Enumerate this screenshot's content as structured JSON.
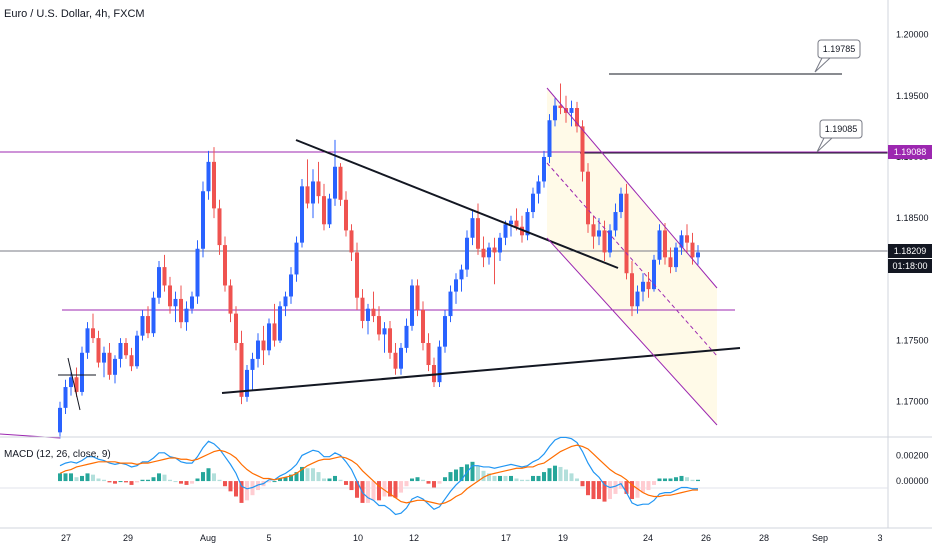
{
  "header": {
    "title": "Euro / U.S. Dollar, 4h, FXCM"
  },
  "macd": {
    "title": "MACD (12, 26, close, 9)"
  },
  "price_axis": [
    "1.20000",
    "1.19500",
    "1.19000",
    "1.18500",
    "1.17500",
    "1.17000"
  ],
  "macd_axis": [
    "0.00200",
    "0.00000"
  ],
  "x_axis": [
    "27",
    "29",
    "Aug",
    "5",
    "10",
    "12",
    "17",
    "19",
    "24",
    "26",
    "28",
    "Sep",
    "3"
  ],
  "tags": {
    "current_price": "1.18209",
    "countdown": "01:18:00",
    "level": "1.19088",
    "callout_upper": "1.19785",
    "callout_lower": "1.19085"
  },
  "colors": {
    "up": "#2962ff",
    "down": "#ef5350",
    "level": "#9c27b0",
    "channel": "#9c27b0",
    "channel_fill": "#fff9e6",
    "macd_line": "#2196f3",
    "signal_line": "#ff6d00",
    "hist_pos_strong": "#26a69a",
    "hist_pos_weak": "#b2dfdb",
    "hist_neg_strong": "#ef5350",
    "hist_neg_weak": "#ffcdd2"
  },
  "chart_data": {
    "type": "candlestick",
    "symbol": "EURUSD",
    "timeframe": "4h",
    "ylim": [
      1.1672,
      1.2025
    ],
    "ohlc": [
      [
        1.1675,
        1.17,
        1.167,
        1.1695
      ],
      [
        1.1695,
        1.1718,
        1.169,
        1.1712
      ],
      [
        1.1712,
        1.1726,
        1.1705,
        1.172
      ],
      [
        1.172,
        1.1728,
        1.1704,
        1.1708
      ],
      [
        1.1708,
        1.1745,
        1.1705,
        1.174
      ],
      [
        1.174,
        1.1765,
        1.1735,
        1.176
      ],
      [
        1.176,
        1.1772,
        1.1748,
        1.1752
      ],
      [
        1.1752,
        1.1758,
        1.1728,
        1.1732
      ],
      [
        1.1732,
        1.1745,
        1.172,
        1.174
      ],
      [
        1.174,
        1.1748,
        1.1718,
        1.1722
      ],
      [
        1.1722,
        1.1738,
        1.1715,
        1.1735
      ],
      [
        1.1735,
        1.1752,
        1.1728,
        1.1748
      ],
      [
        1.1748,
        1.1752,
        1.1735,
        1.1738
      ],
      [
        1.1738,
        1.1744,
        1.1725,
        1.1729
      ],
      [
        1.1729,
        1.1758,
        1.1727,
        1.1754
      ],
      [
        1.1754,
        1.1775,
        1.175,
        1.177
      ],
      [
        1.177,
        1.1778,
        1.1752,
        1.1756
      ],
      [
        1.1756,
        1.179,
        1.1753,
        1.1785
      ],
      [
        1.1785,
        1.1815,
        1.178,
        1.181
      ],
      [
        1.181,
        1.182,
        1.179,
        1.1795
      ],
      [
        1.1795,
        1.1802,
        1.1772,
        1.1778
      ],
      [
        1.1778,
        1.179,
        1.1765,
        1.1784
      ],
      [
        1.1784,
        1.1795,
        1.176,
        1.1765
      ],
      [
        1.1765,
        1.1782,
        1.1758,
        1.1776
      ],
      [
        1.1776,
        1.179,
        1.1772,
        1.1786
      ],
      [
        1.1786,
        1.1832,
        1.178,
        1.1825
      ],
      [
        1.1825,
        1.188,
        1.1818,
        1.1872
      ],
      [
        1.1872,
        1.1905,
        1.1865,
        1.1896
      ],
      [
        1.1896,
        1.1908,
        1.185,
        1.1858
      ],
      [
        1.1858,
        1.1865,
        1.182,
        1.1828
      ],
      [
        1.1828,
        1.1835,
        1.179,
        1.1795
      ],
      [
        1.1795,
        1.18,
        1.1765,
        1.1772
      ],
      [
        1.1772,
        1.1778,
        1.1742,
        1.1748
      ],
      [
        1.1748,
        1.1758,
        1.1698,
        1.1704
      ],
      [
        1.1704,
        1.173,
        1.17,
        1.1726
      ],
      [
        1.1726,
        1.174,
        1.171,
        1.1735
      ],
      [
        1.1735,
        1.1756,
        1.1728,
        1.175
      ],
      [
        1.175,
        1.1762,
        1.173,
        1.1742
      ],
      [
        1.1742,
        1.1768,
        1.1738,
        1.1764
      ],
      [
        1.1764,
        1.178,
        1.1745,
        1.175
      ],
      [
        1.175,
        1.1782,
        1.1748,
        1.1778
      ],
      [
        1.1778,
        1.179,
        1.177,
        1.1786
      ],
      [
        1.1786,
        1.181,
        1.178,
        1.1804
      ],
      [
        1.1804,
        1.1835,
        1.1798,
        1.183
      ],
      [
        1.183,
        1.1882,
        1.1826,
        1.1876
      ],
      [
        1.1876,
        1.1898,
        1.1858,
        1.1862
      ],
      [
        1.1862,
        1.189,
        1.185,
        1.188
      ],
      [
        1.188,
        1.1896,
        1.1862,
        1.1868
      ],
      [
        1.1868,
        1.1878,
        1.184,
        1.1845
      ],
      [
        1.1845,
        1.187,
        1.1842,
        1.1866
      ],
      [
        1.1866,
        1.1914,
        1.186,
        1.1892
      ],
      [
        1.1892,
        1.1895,
        1.186,
        1.1865
      ],
      [
        1.1865,
        1.1872,
        1.1835,
        1.184
      ],
      [
        1.184,
        1.1845,
        1.1815,
        1.1822
      ],
      [
        1.1822,
        1.183,
        1.1775,
        1.1785
      ],
      [
        1.1785,
        1.1792,
        1.176,
        1.1766
      ],
      [
        1.1766,
        1.178,
        1.1755,
        1.1776
      ],
      [
        1.1776,
        1.179,
        1.1765,
        1.177
      ],
      [
        1.177,
        1.1778,
        1.175,
        1.1755
      ],
      [
        1.1755,
        1.1765,
        1.174,
        1.176
      ],
      [
        1.176,
        1.1766,
        1.1735,
        1.174
      ],
      [
        1.174,
        1.1748,
        1.1722,
        1.1727
      ],
      [
        1.1727,
        1.1748,
        1.1722,
        1.1744
      ],
      [
        1.1744,
        1.1768,
        1.174,
        1.1762
      ],
      [
        1.1762,
        1.18,
        1.1758,
        1.1795
      ],
      [
        1.1795,
        1.18,
        1.177,
        1.1775
      ],
      [
        1.1775,
        1.1782,
        1.1742,
        1.1748
      ],
      [
        1.1748,
        1.1756,
        1.1725,
        1.173
      ],
      [
        1.173,
        1.1736,
        1.1712,
        1.1716
      ],
      [
        1.1716,
        1.175,
        1.1712,
        1.1745
      ],
      [
        1.1745,
        1.1775,
        1.174,
        1.177
      ],
      [
        1.177,
        1.1795,
        1.1765,
        1.179
      ],
      [
        1.179,
        1.1805,
        1.178,
        1.18
      ],
      [
        1.18,
        1.1812,
        1.179,
        1.1808
      ],
      [
        1.1808,
        1.184,
        1.1802,
        1.1834
      ],
      [
        1.1834,
        1.1856,
        1.1828,
        1.185
      ],
      [
        1.185,
        1.1862,
        1.182,
        1.1825
      ],
      [
        1.1825,
        1.1835,
        1.181,
        1.1818
      ],
      [
        1.1818,
        1.183,
        1.1812,
        1.1826
      ],
      [
        1.1826,
        1.1834,
        1.1796,
        1.1822
      ],
      [
        1.1822,
        1.1838,
        1.1815,
        1.1834
      ],
      [
        1.1834,
        1.1848,
        1.1828,
        1.1845
      ],
      [
        1.1845,
        1.1852,
        1.1835,
        1.1848
      ],
      [
        1.1848,
        1.1858,
        1.184,
        1.1843
      ],
      [
        1.1843,
        1.1852,
        1.183,
        1.1836
      ],
      [
        1.1836,
        1.1858,
        1.1832,
        1.1855
      ],
      [
        1.1855,
        1.1875,
        1.185,
        1.187
      ],
      [
        1.187,
        1.1885,
        1.1862,
        1.188
      ],
      [
        1.188,
        1.1905,
        1.1875,
        1.19
      ],
      [
        1.19,
        1.1935,
        1.1895,
        1.193
      ],
      [
        1.193,
        1.1948,
        1.1925,
        1.1942
      ],
      [
        1.1942,
        1.196,
        1.1935,
        1.194
      ],
      [
        1.194,
        1.195,
        1.1928,
        1.1936
      ],
      [
        1.1936,
        1.1946,
        1.1925,
        1.194
      ],
      [
        1.194,
        1.1945,
        1.192,
        1.1925
      ],
      [
        1.1925,
        1.193,
        1.188,
        1.1888
      ],
      [
        1.1888,
        1.1895,
        1.1838,
        1.1845
      ],
      [
        1.1845,
        1.1852,
        1.1825,
        1.1835
      ],
      [
        1.1835,
        1.185,
        1.1828,
        1.184
      ],
      [
        1.184,
        1.1848,
        1.1815,
        1.1822
      ],
      [
        1.1822,
        1.1845,
        1.1818,
        1.184
      ],
      [
        1.184,
        1.1862,
        1.1835,
        1.1855
      ],
      [
        1.1855,
        1.1875,
        1.185,
        1.187
      ],
      [
        1.187,
        1.1878,
        1.18,
        1.1805
      ],
      [
        1.1805,
        1.1815,
        1.177,
        1.1778
      ],
      [
        1.1778,
        1.1795,
        1.1772,
        1.179
      ],
      [
        1.179,
        1.1805,
        1.1782,
        1.1798
      ],
      [
        1.1798,
        1.1806,
        1.1785,
        1.1792
      ],
      [
        1.1792,
        1.182,
        1.179,
        1.1816
      ],
      [
        1.1816,
        1.1845,
        1.1812,
        1.184
      ],
      [
        1.184,
        1.1846,
        1.1812,
        1.1818
      ],
      [
        1.1818,
        1.1826,
        1.1805,
        1.181
      ],
      [
        1.181,
        1.183,
        1.1806,
        1.1826
      ],
      [
        1.1826,
        1.184,
        1.182,
        1.1836
      ],
      [
        1.1836,
        1.1845,
        1.1822,
        1.183
      ],
      [
        1.183,
        1.1838,
        1.1812,
        1.1818
      ],
      [
        1.1818,
        1.1828,
        1.1812,
        1.1822
      ]
    ],
    "macd": [
      0.0012,
      0.0014,
      0.0015,
      0.0014,
      0.0016,
      0.0019,
      0.0019,
      0.0017,
      0.0016,
      0.0014,
      0.0013,
      0.0014,
      0.0013,
      0.0011,
      0.0012,
      0.0015,
      0.0015,
      0.0018,
      0.0022,
      0.0022,
      0.0019,
      0.0018,
      0.0015,
      0.0014,
      0.0014,
      0.0019,
      0.0026,
      0.0031,
      0.0029,
      0.0025,
      0.0019,
      0.0013,
      0.0006,
      -0.0004,
      -0.0006,
      -0.0005,
      -0.0003,
      -0.0002,
      0.0001,
      0.0001,
      0.0004,
      0.0006,
      0.0009,
      0.0013,
      0.002,
      0.0022,
      0.0024,
      0.0023,
      0.0019,
      0.0019,
      0.0022,
      0.002,
      0.0015,
      0.0009,
      0.0,
      -0.0009,
      -0.0013,
      -0.0015,
      -0.0019,
      -0.0019,
      -0.0022,
      -0.0026,
      -0.0025,
      -0.0021,
      -0.0014,
      -0.0012,
      -0.0014,
      -0.0018,
      -0.0022,
      -0.002,
      -0.0014,
      -0.0008,
      -0.0003,
      0.0001,
      0.0007,
      0.0012,
      0.0012,
      0.0011,
      0.0011,
      0.001,
      0.0011,
      0.0012,
      0.0013,
      0.0012,
      0.0011,
      0.0012,
      0.0015,
      0.0017,
      0.0021,
      0.0027,
      0.0032,
      0.0034,
      0.0034,
      0.0033,
      0.003,
      0.0023,
      0.0014,
      0.0007,
      0.0003,
      -0.0003,
      -0.0005,
      -0.0004,
      -0.0002,
      -0.0009,
      -0.0017,
      -0.0019,
      -0.0018,
      -0.0018,
      -0.0015,
      -0.001,
      -0.0009,
      -0.0009,
      -0.0007,
      -0.0005,
      -0.0005,
      -0.0006,
      -0.0006
    ],
    "signal": [
      0.0006,
      0.0008,
      0.0009,
      0.0011,
      0.0012,
      0.0013,
      0.0014,
      0.0015,
      0.0015,
      0.0015,
      0.0015,
      0.0014,
      0.0014,
      0.0014,
      0.0013,
      0.0014,
      0.0014,
      0.0015,
      0.0016,
      0.0017,
      0.0018,
      0.0018,
      0.0017,
      0.0017,
      0.0016,
      0.0017,
      0.0019,
      0.0021,
      0.0023,
      0.0024,
      0.0023,
      0.0021,
      0.0018,
      0.0013,
      0.0009,
      0.0006,
      0.0004,
      0.0002,
      0.0002,
      0.0001,
      0.0002,
      0.0003,
      0.0004,
      0.0006,
      0.0009,
      0.0012,
      0.0014,
      0.0016,
      0.0017,
      0.0017,
      0.0018,
      0.0019,
      0.0018,
      0.0016,
      0.0013,
      0.0008,
      0.0004,
      0.0,
      -0.0004,
      -0.0007,
      -0.001,
      -0.0013,
      -0.0016,
      -0.0017,
      -0.0016,
      -0.0015,
      -0.0015,
      -0.0016,
      -0.0017,
      -0.0018,
      -0.0017,
      -0.0015,
      -0.0012,
      -0.001,
      -0.0006,
      -0.0003,
      0.0,
      0.0003,
      0.0005,
      0.0006,
      0.0007,
      0.0008,
      0.0009,
      0.001,
      0.001,
      0.0011,
      0.0011,
      0.0013,
      0.0014,
      0.0017,
      0.002,
      0.0023,
      0.0025,
      0.0027,
      0.0028,
      0.0027,
      0.0025,
      0.0021,
      0.0017,
      0.0013,
      0.0009,
      0.0006,
      0.0004,
      0.0001,
      -0.0003,
      -0.0006,
      -0.0009,
      -0.0011,
      -0.0012,
      -0.0012,
      -0.0011,
      -0.0011,
      -0.001,
      -0.0009,
      -0.0008,
      -0.0007,
      -0.0007
    ],
    "macd_ylim": [
      -0.0035,
      0.0032
    ],
    "horizontal_levels": [
      1.19088,
      1.18209,
      1.177
    ],
    "current_price": 1.18209
  }
}
